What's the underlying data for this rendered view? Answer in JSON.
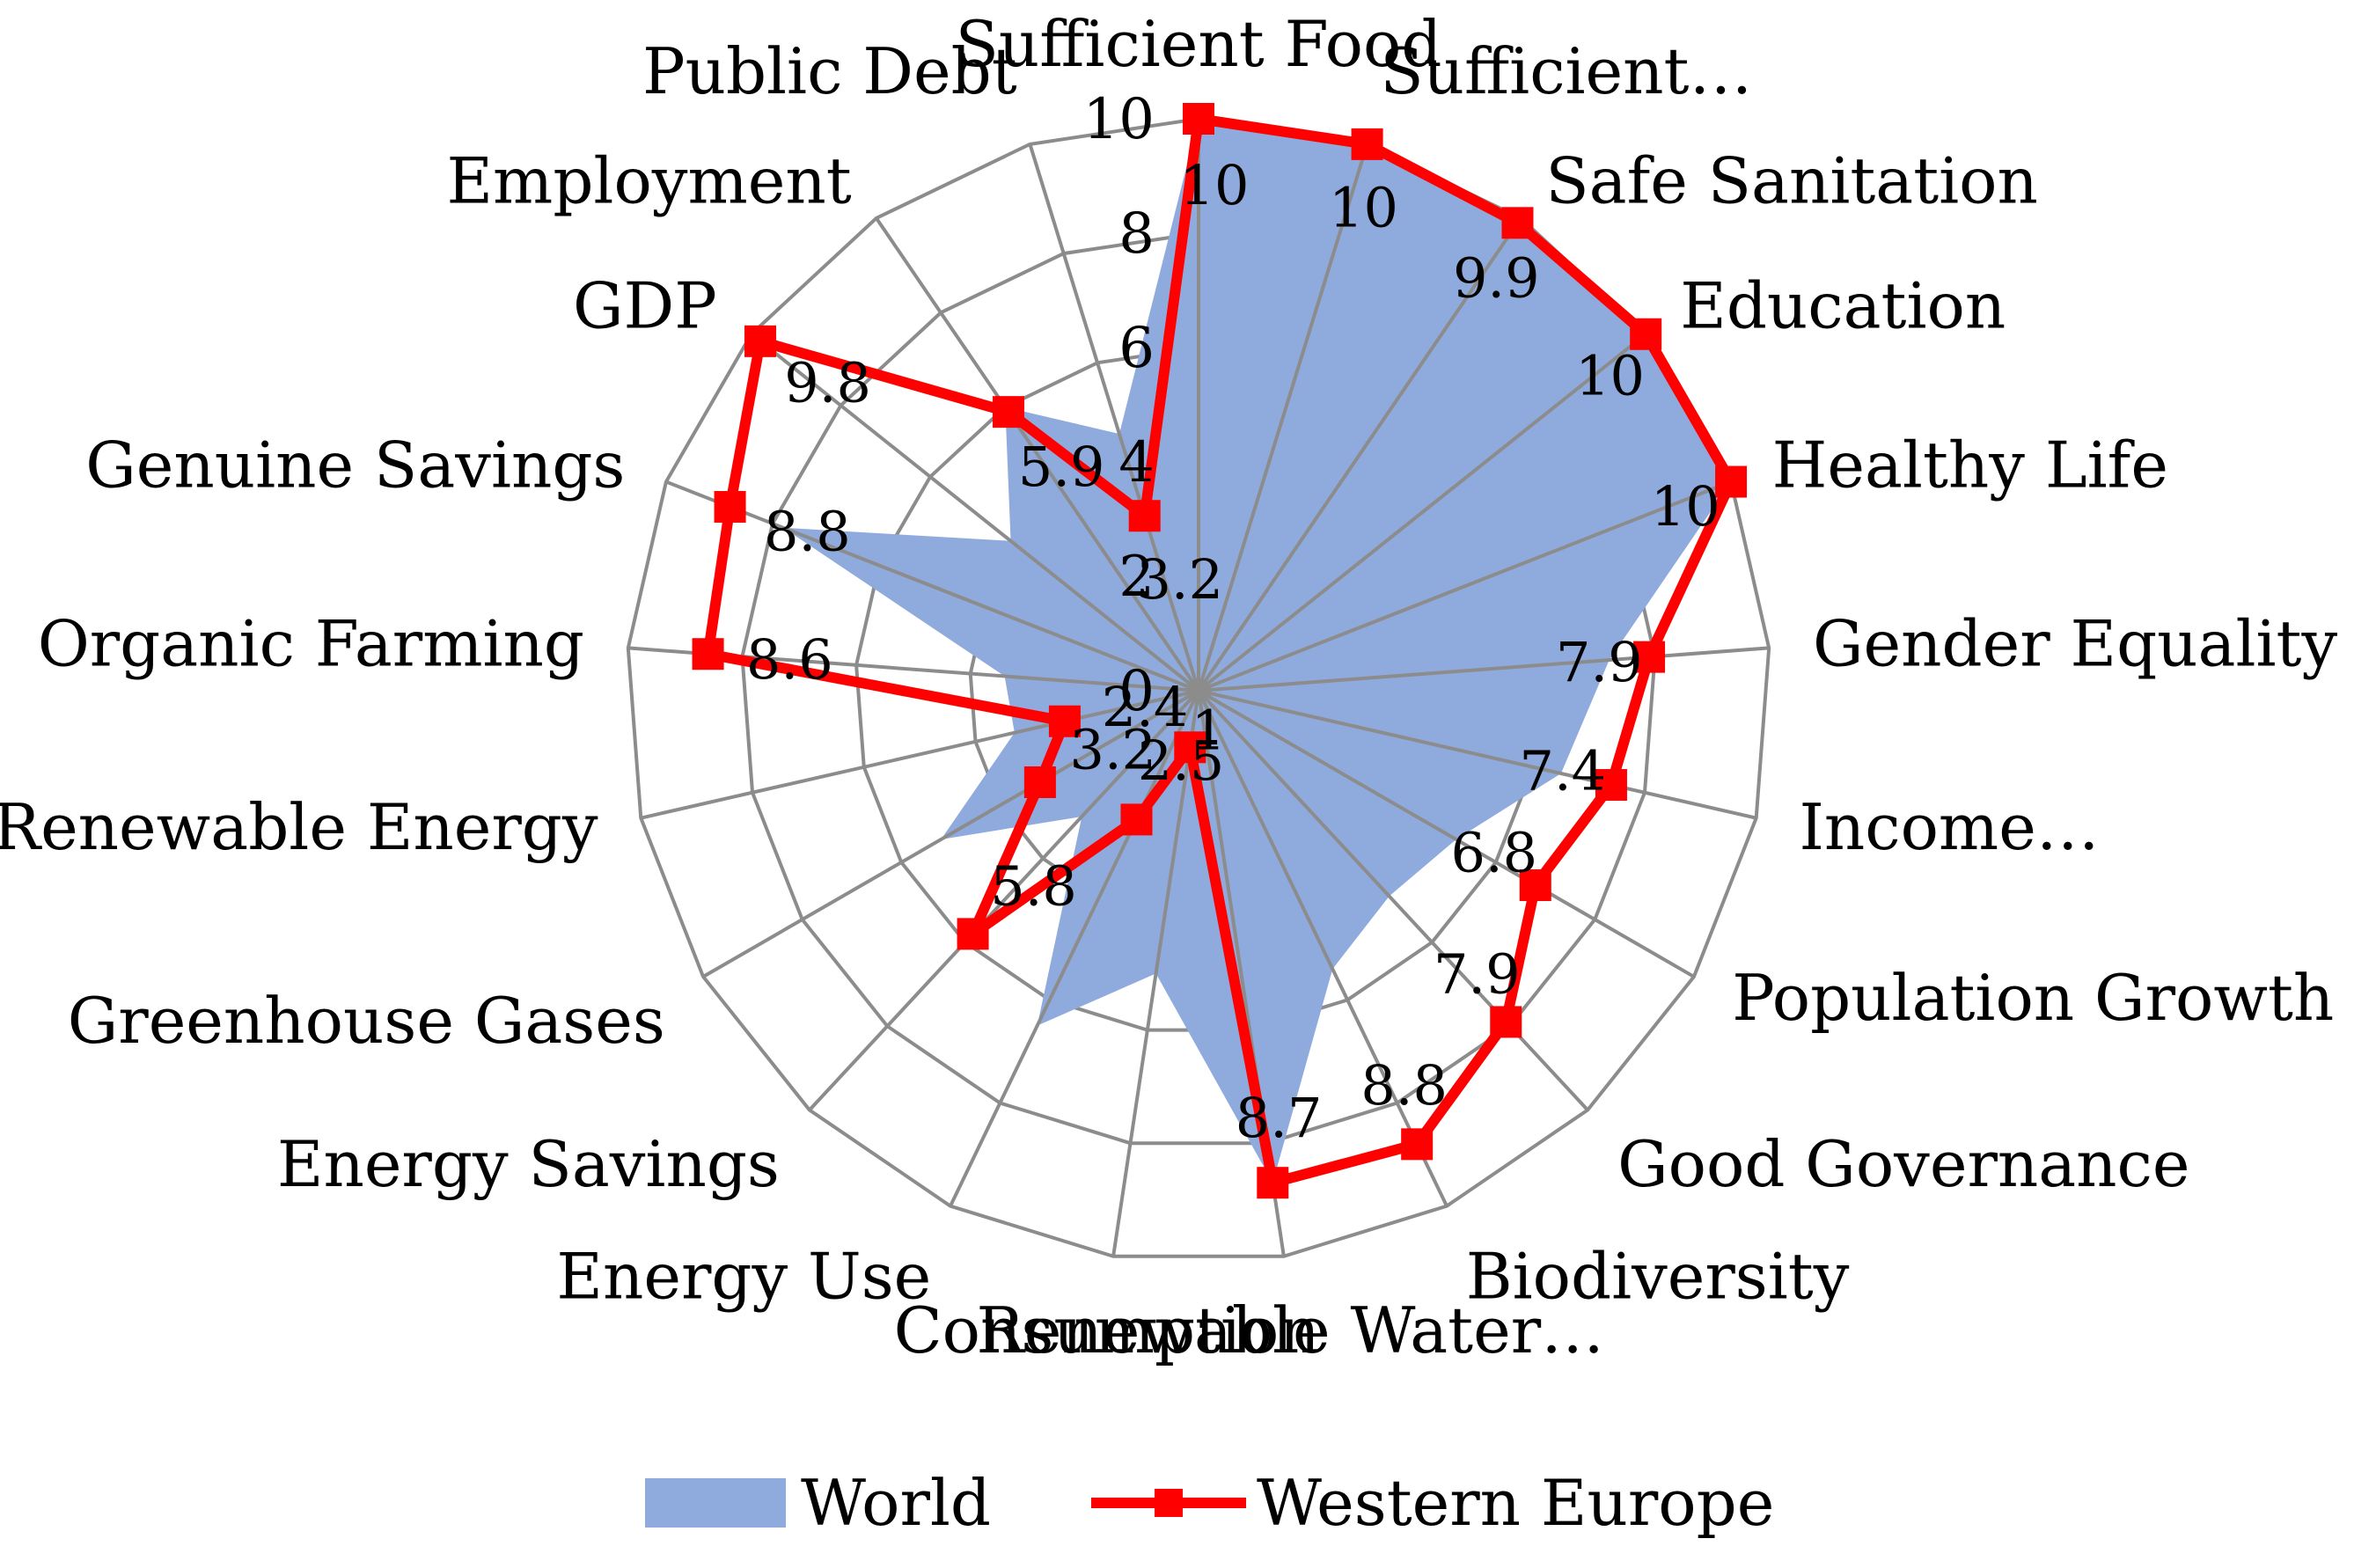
{
  "chart_data": {
    "type": "radar",
    "categories": [
      "Sufficient Food",
      "Sufficient…",
      "Safe Sanitation",
      "Education",
      "Healthy Life",
      "Gender Equality",
      "Income…",
      "Population Growth",
      "Good Governance",
      "Biodiversity",
      "Renewable Water…",
      "Consumption",
      "Energy Use",
      "Energy Savings",
      "Greenhouse Gases",
      "Renewable Energy",
      "Organic Farming",
      "Genuine Savings",
      "GDP",
      "Employment",
      "Public Debt"
    ],
    "rlim": [
      0,
      10
    ],
    "ticks": [
      "0",
      "2",
      "4",
      "6",
      "8",
      "10"
    ],
    "grid": true,
    "legend_position": "bottom",
    "series": [
      {
        "name": "World",
        "style": "area",
        "color": "#8FAADC",
        "values": [
          10,
          10,
          9.9,
          10,
          10,
          7.2,
          6.5,
          5.2,
          4.9,
          5.4,
          8.7,
          5.0,
          6.5,
          3.0,
          5.2,
          3.3,
          3.4,
          7.8,
          4.2,
          6.0,
          4.7
        ]
      },
      {
        "name": "Western Europe",
        "style": "line-marker",
        "color": "#FF0000",
        "values": [
          10,
          10,
          9.9,
          10,
          10,
          7.9,
          7.4,
          6.8,
          7.9,
          8.8,
          8.7,
          1.0,
          2.5,
          5.8,
          3.2,
          2.4,
          8.6,
          8.8,
          9.8,
          5.9,
          3.2
        ],
        "labels": [
          "10",
          "10",
          "9.9",
          "10",
          "10",
          "7.9",
          "7.4",
          "6.8",
          "7.9",
          "8.8",
          "8.7",
          "1",
          "2.5",
          "5.8",
          "3.2",
          "2.4",
          "8.6",
          "8.8",
          "9.8",
          "5.9",
          "3.2"
        ]
      }
    ]
  }
}
